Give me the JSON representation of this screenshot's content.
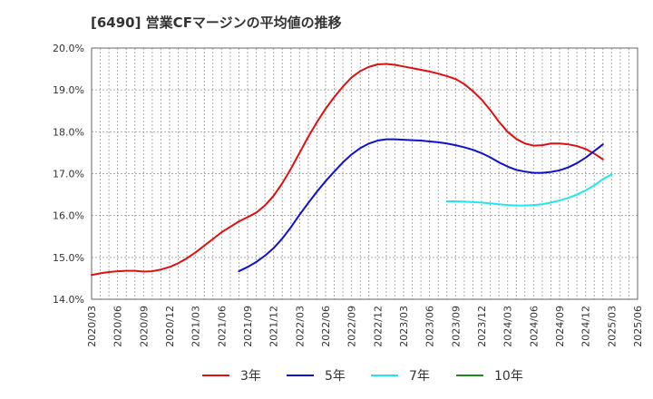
{
  "chart_data": {
    "type": "line",
    "title": "[6490]  営業CFマージンの平均値の推移",
    "xlabel": "",
    "ylabel": "",
    "ylim": [
      14.0,
      20.0
    ],
    "yticks": [
      "14.0%",
      "15.0%",
      "16.0%",
      "17.0%",
      "18.0%",
      "19.0%",
      "20.0%"
    ],
    "xticks": [
      "2020/03",
      "2020/06",
      "2020/09",
      "2020/12",
      "2021/03",
      "2021/06",
      "2021/09",
      "2021/12",
      "2022/03",
      "2022/06",
      "2022/09",
      "2022/12",
      "2023/03",
      "2023/06",
      "2023/09",
      "2023/12",
      "2024/03",
      "2024/06",
      "2024/09",
      "2024/12",
      "2025/03",
      "2025/06"
    ],
    "grid": true,
    "legend_position": "bottom",
    "series": [
      {
        "name": "3年",
        "color": "#dd1111",
        "values": [
          {
            "x": "2020/03",
            "y": 14.58
          },
          {
            "x": "2020/04",
            "y": 14.62
          },
          {
            "x": "2020/05",
            "y": 14.65
          },
          {
            "x": "2020/06",
            "y": 14.67
          },
          {
            "x": "2020/07",
            "y": 14.68
          },
          {
            "x": "2020/08",
            "y": 14.68
          },
          {
            "x": "2020/09",
            "y": 14.66
          },
          {
            "x": "2020/10",
            "y": 14.67
          },
          {
            "x": "2020/11",
            "y": 14.71
          },
          {
            "x": "2020/12",
            "y": 14.77
          },
          {
            "x": "2021/01",
            "y": 14.86
          },
          {
            "x": "2021/02",
            "y": 14.98
          },
          {
            "x": "2021/03",
            "y": 15.12
          },
          {
            "x": "2021/04",
            "y": 15.28
          },
          {
            "x": "2021/05",
            "y": 15.44
          },
          {
            "x": "2021/06",
            "y": 15.6
          },
          {
            "x": "2021/07",
            "y": 15.73
          },
          {
            "x": "2021/08",
            "y": 15.86
          },
          {
            "x": "2021/09",
            "y": 15.96
          },
          {
            "x": "2021/10",
            "y": 16.07
          },
          {
            "x": "2021/11",
            "y": 16.24
          },
          {
            "x": "2021/12",
            "y": 16.47
          },
          {
            "x": "2022/01",
            "y": 16.77
          },
          {
            "x": "2022/02",
            "y": 17.12
          },
          {
            "x": "2022/03",
            "y": 17.5
          },
          {
            "x": "2022/04",
            "y": 17.88
          },
          {
            "x": "2022/05",
            "y": 18.23
          },
          {
            "x": "2022/06",
            "y": 18.55
          },
          {
            "x": "2022/07",
            "y": 18.83
          },
          {
            "x": "2022/08",
            "y": 19.08
          },
          {
            "x": "2022/09",
            "y": 19.3
          },
          {
            "x": "2022/10",
            "y": 19.45
          },
          {
            "x": "2022/11",
            "y": 19.55
          },
          {
            "x": "2022/12",
            "y": 19.61
          },
          {
            "x": "2023/01",
            "y": 19.62
          },
          {
            "x": "2023/02",
            "y": 19.6
          },
          {
            "x": "2023/03",
            "y": 19.56
          },
          {
            "x": "2023/04",
            "y": 19.52
          },
          {
            "x": "2023/05",
            "y": 19.48
          },
          {
            "x": "2023/06",
            "y": 19.44
          },
          {
            "x": "2023/07",
            "y": 19.39
          },
          {
            "x": "2023/08",
            "y": 19.33
          },
          {
            "x": "2023/09",
            "y": 19.26
          },
          {
            "x": "2023/10",
            "y": 19.14
          },
          {
            "x": "2023/11",
            "y": 18.97
          },
          {
            "x": "2023/12",
            "y": 18.77
          },
          {
            "x": "2024/01",
            "y": 18.52
          },
          {
            "x": "2024/02",
            "y": 18.24
          },
          {
            "x": "2024/03",
            "y": 18.0
          },
          {
            "x": "2024/04",
            "y": 17.83
          },
          {
            "x": "2024/05",
            "y": 17.72
          },
          {
            "x": "2024/06",
            "y": 17.67
          },
          {
            "x": "2024/07",
            "y": 17.68
          },
          {
            "x": "2024/08",
            "y": 17.72
          },
          {
            "x": "2024/09",
            "y": 17.72
          },
          {
            "x": "2024/10",
            "y": 17.7
          },
          {
            "x": "2024/11",
            "y": 17.66
          },
          {
            "x": "2024/12",
            "y": 17.59
          },
          {
            "x": "2025/01",
            "y": 17.48
          },
          {
            "x": "2025/02",
            "y": 17.34
          }
        ]
      },
      {
        "name": "5年",
        "color": "#1111cc",
        "values": [
          {
            "x": "2021/08",
            "y": 14.67
          },
          {
            "x": "2021/09",
            "y": 14.77
          },
          {
            "x": "2021/10",
            "y": 14.89
          },
          {
            "x": "2021/11",
            "y": 15.04
          },
          {
            "x": "2021/12",
            "y": 15.22
          },
          {
            "x": "2022/01",
            "y": 15.45
          },
          {
            "x": "2022/02",
            "y": 15.72
          },
          {
            "x": "2022/03",
            "y": 16.02
          },
          {
            "x": "2022/04",
            "y": 16.3
          },
          {
            "x": "2022/05",
            "y": 16.57
          },
          {
            "x": "2022/06",
            "y": 16.82
          },
          {
            "x": "2022/07",
            "y": 17.05
          },
          {
            "x": "2022/08",
            "y": 17.27
          },
          {
            "x": "2022/09",
            "y": 17.46
          },
          {
            "x": "2022/10",
            "y": 17.61
          },
          {
            "x": "2022/11",
            "y": 17.72
          },
          {
            "x": "2022/12",
            "y": 17.79
          },
          {
            "x": "2023/01",
            "y": 17.82
          },
          {
            "x": "2023/02",
            "y": 17.82
          },
          {
            "x": "2023/03",
            "y": 17.81
          },
          {
            "x": "2023/04",
            "y": 17.8
          },
          {
            "x": "2023/05",
            "y": 17.79
          },
          {
            "x": "2023/06",
            "y": 17.77
          },
          {
            "x": "2023/07",
            "y": 17.75
          },
          {
            "x": "2023/08",
            "y": 17.72
          },
          {
            "x": "2023/09",
            "y": 17.68
          },
          {
            "x": "2023/10",
            "y": 17.63
          },
          {
            "x": "2023/11",
            "y": 17.57
          },
          {
            "x": "2023/12",
            "y": 17.49
          },
          {
            "x": "2024/01",
            "y": 17.39
          },
          {
            "x": "2024/02",
            "y": 17.27
          },
          {
            "x": "2024/03",
            "y": 17.17
          },
          {
            "x": "2024/04",
            "y": 17.09
          },
          {
            "x": "2024/05",
            "y": 17.05
          },
          {
            "x": "2024/06",
            "y": 17.02
          },
          {
            "x": "2024/07",
            "y": 17.02
          },
          {
            "x": "2024/08",
            "y": 17.04
          },
          {
            "x": "2024/09",
            "y": 17.08
          },
          {
            "x": "2024/10",
            "y": 17.15
          },
          {
            "x": "2024/11",
            "y": 17.25
          },
          {
            "x": "2024/12",
            "y": 17.38
          },
          {
            "x": "2025/01",
            "y": 17.54
          },
          {
            "x": "2025/02",
            "y": 17.7
          }
        ]
      },
      {
        "name": "7年",
        "color": "#22e5ee",
        "values": [
          {
            "x": "2023/08",
            "y": 16.34
          },
          {
            "x": "2023/09",
            "y": 16.34
          },
          {
            "x": "2023/10",
            "y": 16.33
          },
          {
            "x": "2023/11",
            "y": 16.32
          },
          {
            "x": "2023/12",
            "y": 16.31
          },
          {
            "x": "2024/01",
            "y": 16.29
          },
          {
            "x": "2024/02",
            "y": 16.27
          },
          {
            "x": "2024/03",
            "y": 16.25
          },
          {
            "x": "2024/04",
            "y": 16.24
          },
          {
            "x": "2024/05",
            "y": 16.24
          },
          {
            "x": "2024/06",
            "y": 16.25
          },
          {
            "x": "2024/07",
            "y": 16.27
          },
          {
            "x": "2024/08",
            "y": 16.31
          },
          {
            "x": "2024/09",
            "y": 16.36
          },
          {
            "x": "2024/10",
            "y": 16.42
          },
          {
            "x": "2024/11",
            "y": 16.5
          },
          {
            "x": "2024/12",
            "y": 16.6
          },
          {
            "x": "2025/01",
            "y": 16.72
          },
          {
            "x": "2025/02",
            "y": 16.87
          },
          {
            "x": "2025/03",
            "y": 16.98
          }
        ]
      },
      {
        "name": "10年",
        "color": "#228822",
        "values": []
      }
    ]
  }
}
